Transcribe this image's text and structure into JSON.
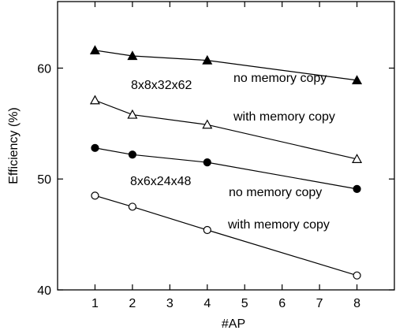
{
  "chart_data": {
    "type": "line",
    "xlabel": "#AP",
    "ylabel": "Efficiency (%)",
    "xlim": [
      0,
      9
    ],
    "ylim": [
      40,
      66
    ],
    "xticks": [
      1,
      2,
      3,
      4,
      5,
      6,
      7,
      8
    ],
    "yticks": [
      40,
      50,
      60
    ],
    "grid": false,
    "annotations": {
      "group_a": "8x8x32x62",
      "group_b": "8x6x24x48",
      "a_no_copy": "no memory copy",
      "a_with_copy": "with memory copy",
      "b_no_copy": "no memory copy",
      "b_with_copy": "with memory copy"
    },
    "series": [
      {
        "marker": "filled-triangle",
        "x": [
          1,
          2,
          4,
          8
        ],
        "values": [
          61.6,
          61.1,
          60.7,
          58.9
        ]
      },
      {
        "marker": "open-triangle",
        "x": [
          1,
          2,
          4,
          8
        ],
        "values": [
          57.1,
          55.8,
          54.9,
          51.8
        ]
      },
      {
        "marker": "filled-circle",
        "x": [
          1,
          2,
          4,
          8
        ],
        "values": [
          52.8,
          52.2,
          51.5,
          49.1
        ]
      },
      {
        "marker": "open-circle",
        "x": [
          1,
          2,
          4,
          8
        ],
        "values": [
          48.5,
          47.5,
          45.4,
          41.3
        ]
      }
    ]
  }
}
